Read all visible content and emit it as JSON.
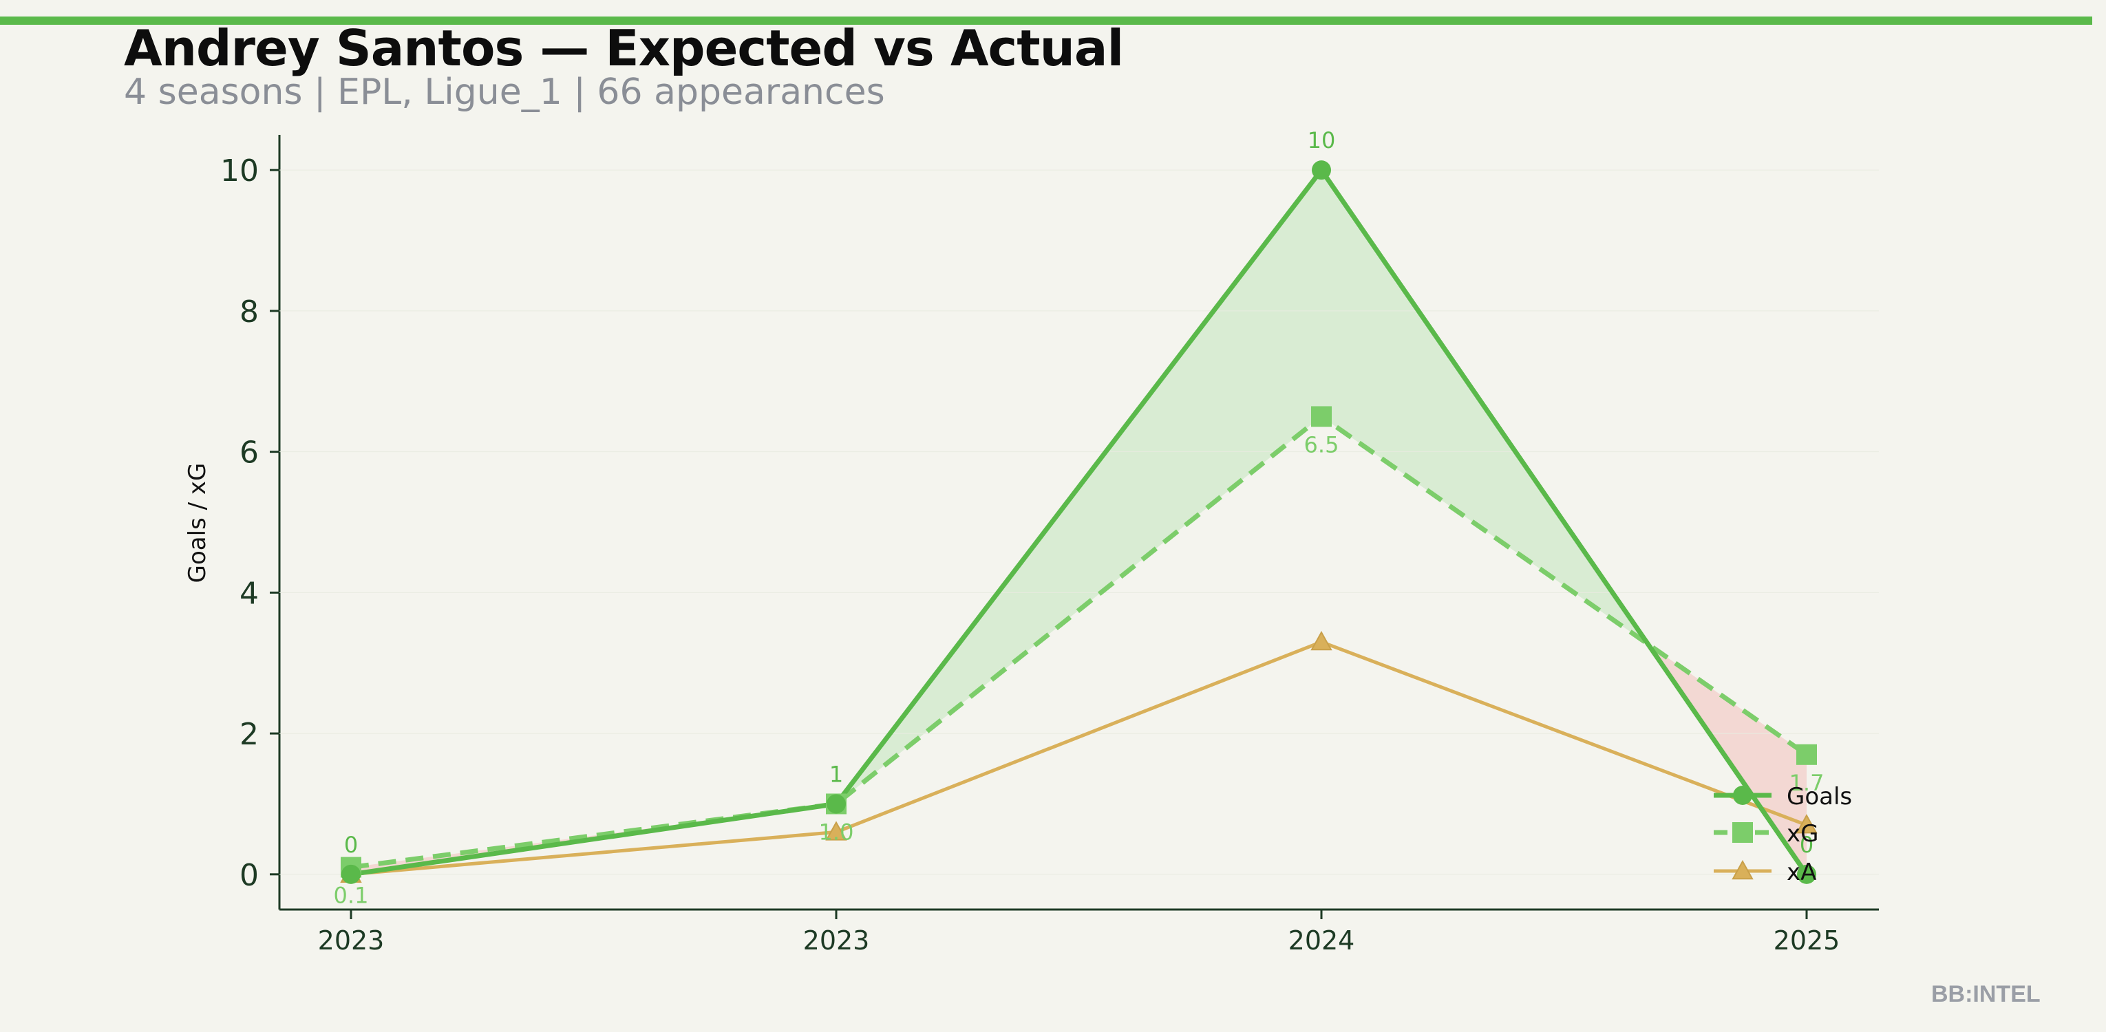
{
  "header": {
    "title": "Andrey Santos — Expected vs Actual",
    "subtitle": "4 seasons | EPL, Ligue_1 | 66 appearances"
  },
  "watermark": "BB:INTEL",
  "colors": {
    "goals": "#5ab94a",
    "xg": "#7ccd6a",
    "xa": "#d9b05a",
    "overperf_fill": "#d6ebcf",
    "underperf_fill": "#f3d5cf",
    "axis": "#1d3a24",
    "background": "#f4f4ee"
  },
  "chart_data": {
    "type": "line",
    "categories": [
      "2023",
      "2023",
      "2024",
      "2025"
    ],
    "series": [
      {
        "name": "Goals",
        "values": [
          0,
          1,
          10,
          0
        ],
        "marker": "circle",
        "style": "solid"
      },
      {
        "name": "xG",
        "values": [
          0.1,
          1.0,
          6.5,
          1.7
        ],
        "marker": "square",
        "style": "dashed"
      },
      {
        "name": "xA",
        "values": [
          0.0,
          0.6,
          3.3,
          0.7
        ],
        "marker": "triangle",
        "style": "solid"
      }
    ],
    "goal_labels": [
      "0",
      "1",
      "10",
      "0"
    ],
    "xg_labels": [
      "0.1",
      "1.0",
      "6.5",
      "1.7"
    ],
    "xlabel": "",
    "ylabel": "Goals / xG",
    "ylim": [
      -0.5,
      10.5
    ],
    "yticks": [
      0,
      2,
      4,
      6,
      8,
      10
    ],
    "grid": false,
    "legend_position": "bottom-right",
    "fill_between_goals_xg": true
  }
}
